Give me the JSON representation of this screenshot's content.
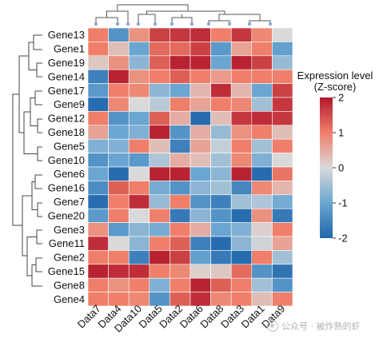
{
  "chart_data": {
    "type": "heatmap",
    "rows": [
      "Gene13",
      "Gene1",
      "Gene19",
      "Gene14",
      "Gene17",
      "Gene9",
      "Gene12",
      "Gene18",
      "Gene5",
      "Gene10",
      "Gene6",
      "Gene16",
      "Gene7",
      "Gene20",
      "Gene3",
      "Gene11",
      "Gene2",
      "Gene15",
      "Gene8",
      "Gene4"
    ],
    "columns": [
      "Data7",
      "Data4",
      "Data10",
      "Data5",
      "Data2",
      "Data6",
      "Data8",
      "Data3",
      "Data1",
      "Data9"
    ],
    "values": [
      [
        1.0,
        -1.3,
        0.8,
        1.6,
        1.7,
        1.8,
        1.0,
        1.7,
        0.9,
        0.0
      ],
      [
        1.0,
        0.3,
        -1.0,
        1.2,
        1.2,
        1.6,
        -1.2,
        0.6,
        1.0,
        -1.1
      ],
      [
        0.2,
        0.8,
        -0.7,
        1.3,
        1.9,
        1.9,
        -1.0,
        1.9,
        1.6,
        -0.6
      ],
      [
        -1.6,
        1.9,
        0.8,
        1.0,
        1.3,
        1.0,
        0.7,
        1.0,
        1.0,
        1.0
      ],
      [
        -1.2,
        1.0,
        0.9,
        -0.7,
        -1.0,
        0.4,
        1.8,
        0.4,
        -1.0,
        1.6
      ],
      [
        -1.9,
        0.9,
        0.0,
        -0.3,
        1.0,
        0.6,
        1.0,
        0.9,
        -0.5,
        1.7
      ],
      [
        1.0,
        -1.3,
        -1.0,
        1.3,
        0.5,
        -1.9,
        0.3,
        1.7,
        1.8,
        1.7
      ],
      [
        0.6,
        -1.0,
        -0.8,
        1.9,
        -1.3,
        0.5,
        -0.6,
        0.8,
        1.0,
        0.3
      ],
      [
        -0.8,
        -0.8,
        1.0,
        0.3,
        -1.6,
        0.6,
        -0.2,
        1.0,
        -0.5,
        1.0
      ],
      [
        -1.3,
        -1.0,
        -1.2,
        -0.4,
        0.5,
        0.3,
        -0.5,
        0.9,
        -0.8,
        0.0
      ],
      [
        -1.0,
        -1.9,
        0.0,
        1.9,
        1.9,
        -1.0,
        -0.7,
        1.9,
        -1.9,
        1.1
      ],
      [
        -1.4,
        1.3,
        1.0,
        -0.9,
        -1.3,
        -0.7,
        -0.5,
        -1.5,
        0.9,
        0.4
      ],
      [
        -1.9,
        1.0,
        1.8,
        -0.6,
        1.0,
        -1.3,
        -1.6,
        -0.5,
        -0.4,
        -0.9
      ],
      [
        -1.2,
        1.0,
        0.0,
        1.0,
        -1.7,
        -0.7,
        -1.3,
        -1.9,
        0.8,
        -1.7
      ],
      [
        0.8,
        -1.2,
        -0.7,
        -0.9,
        1.0,
        0.5,
        -1.0,
        -0.8,
        0.1,
        1.0
      ],
      [
        1.8,
        0.0,
        -0.7,
        1.0,
        1.3,
        -1.6,
        -1.9,
        -0.7,
        -0.1,
        0.6
      ],
      [
        1.0,
        1.0,
        -1.6,
        1.9,
        1.6,
        -1.1,
        -1.7,
        -1.9,
        1.0,
        -0.5
      ],
      [
        1.9,
        1.8,
        1.8,
        1.0,
        0.9,
        0.1,
        0.2,
        1.2,
        -1.3,
        -1.8
      ],
      [
        1.0,
        0.8,
        1.0,
        -0.8,
        1.0,
        1.9,
        1.3,
        1.0,
        -0.5,
        -1.3
      ],
      [
        1.0,
        1.0,
        0.9,
        -1.3,
        1.3,
        1.8,
        0.9,
        1.0,
        0.3,
        1.0
      ]
    ],
    "legend_title": [
      "Expression level",
      "(Z-score)"
    ],
    "legend_ticks": [
      2,
      1,
      0,
      -1,
      -2
    ],
    "range": [
      -2,
      2
    ],
    "colors": {
      "low": "#2166ac",
      "mid": "#d9d9d9",
      "high": "#b2182b"
    }
  },
  "watermark": "公众号 · 被炸熟的虾"
}
